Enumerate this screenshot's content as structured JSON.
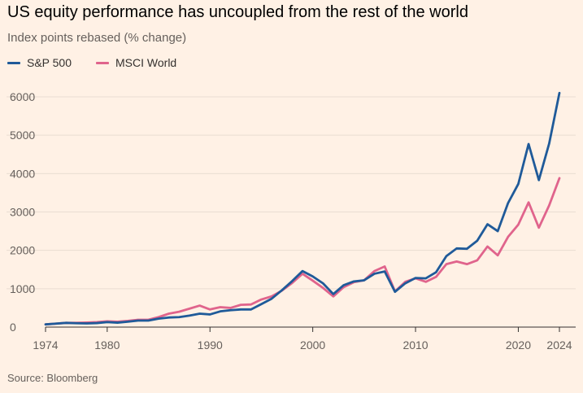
{
  "title": "US equity performance has uncoupled from the rest of the world",
  "subtitle": "Index points rebased (% change)",
  "source": "Source: Bloomberg",
  "colors": {
    "sp500": "#1f5a99",
    "msci": "#e0648c",
    "background": "#fff1e5",
    "grid": "#e9ddd2"
  },
  "legend": [
    {
      "label": "S&P 500",
      "color": "#1f5a99"
    },
    {
      "label": "MSCI World",
      "color": "#e0648c"
    }
  ],
  "chart_data": {
    "type": "line",
    "title": "US equity performance has uncoupled from the rest of the world",
    "ylabel": "Index points rebased (% change)",
    "xlim": [
      1974,
      2024
    ],
    "ylim": [
      0,
      6000
    ],
    "x_ticks": [
      1974,
      1980,
      1990,
      2000,
      2010,
      2020,
      2024
    ],
    "y_ticks": [
      0,
      1000,
      2000,
      3000,
      4000,
      5000,
      6000
    ],
    "grid": true,
    "legend_position": "top-left",
    "x": [
      1974,
      1975,
      1976,
      1977,
      1978,
      1979,
      1980,
      1981,
      1982,
      1983,
      1984,
      1985,
      1986,
      1987,
      1988,
      1989,
      1990,
      1991,
      1992,
      1993,
      1994,
      1995,
      1996,
      1997,
      1998,
      1999,
      2000,
      2001,
      2002,
      2003,
      2004,
      2005,
      2006,
      2007,
      2008,
      2009,
      2010,
      2011,
      2012,
      2013,
      2014,
      2015,
      2016,
      2017,
      2018,
      2019,
      2020,
      2021,
      2022,
      2023,
      2024
    ],
    "series": [
      {
        "name": "S&P 500",
        "values": [
          70,
          90,
          110,
          100,
          95,
          105,
          130,
          115,
          140,
          170,
          170,
          220,
          250,
          260,
          300,
          350,
          330,
          410,
          440,
          460,
          460,
          600,
          740,
          960,
          1200,
          1460,
          1320,
          1140,
          860,
          1090,
          1190,
          1220,
          1390,
          1450,
          920,
          1140,
          1280,
          1270,
          1430,
          1850,
          2050,
          2040,
          2250,
          2680,
          2500,
          3230,
          3730,
          4770,
          3830,
          4780,
          6100
        ]
      },
      {
        "name": "MSCI World",
        "values": [
          70,
          90,
          110,
          110,
          120,
          130,
          150,
          140,
          160,
          190,
          190,
          260,
          350,
          400,
          480,
          560,
          460,
          520,
          500,
          580,
          590,
          720,
          800,
          950,
          1150,
          1390,
          1210,
          1020,
          800,
          1040,
          1170,
          1220,
          1460,
          1580,
          930,
          1180,
          1270,
          1180,
          1310,
          1640,
          1710,
          1640,
          1740,
          2100,
          1870,
          2350,
          2670,
          3250,
          2590,
          3170,
          3880
        ]
      }
    ]
  }
}
